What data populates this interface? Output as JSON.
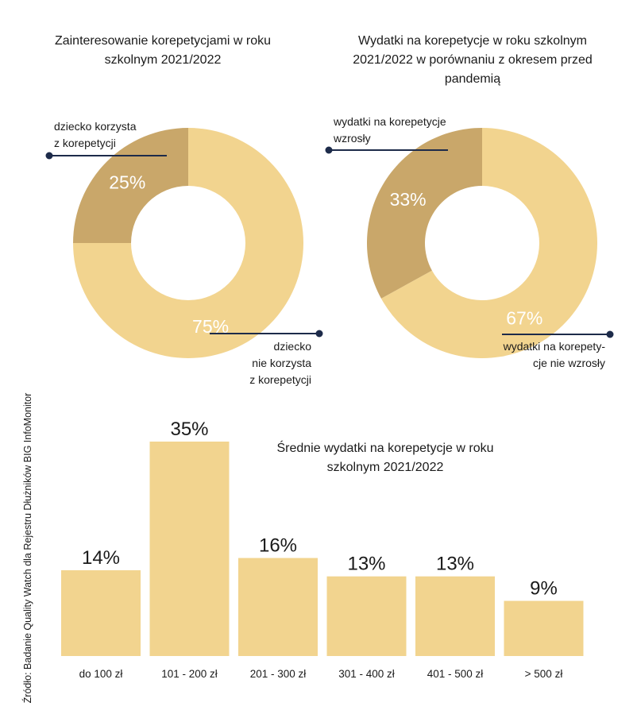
{
  "colors": {
    "light": "#f2d48f",
    "dark": "#c9a76a",
    "line": "#1d2b4a",
    "white": "#ffffff"
  },
  "source": "Źródło: Badanie Quality Watch dla Rejestru Dłużników BIG InfoMonitor",
  "chart_data": [
    {
      "type": "pie",
      "title": "Zainteresowanie korepetycjami w roku szkolnym 2021/2022",
      "slices": [
        {
          "label": "dziecko korzysta z korepetycji",
          "value": 25,
          "value_label": "25%",
          "color": "#c9a76a"
        },
        {
          "label": "dziecko nie korzysta z korepetycji",
          "value": 75,
          "value_label": "75%",
          "color": "#f2d48f"
        }
      ]
    },
    {
      "type": "pie",
      "title": "Wydatki na korepetycje w roku szkolnym 2021/2022 w porównaniu z okresem przed pandemią",
      "slices": [
        {
          "label": "wydatki na korepetycje wzrosły",
          "value": 33,
          "value_label": "33%",
          "color": "#c9a76a"
        },
        {
          "label": "wydatki na korepetycje nie wzrosły",
          "value": 67,
          "value_label": "67%",
          "color": "#f2d48f"
        }
      ]
    },
    {
      "type": "bar",
      "title": "Średnie wydatki na korepetycje w roku szkolnym 2021/2022",
      "categories": [
        "do 100 zł",
        "101 - 200 zł",
        "201 - 300 zł",
        "301 - 400 zł",
        "401 - 500 zł",
        "> 500 zł"
      ],
      "values": [
        14,
        35,
        16,
        13,
        13,
        9
      ],
      "value_labels": [
        "14%",
        "35%",
        "16%",
        "13%",
        "13%",
        "9%"
      ],
      "color": "#f2d48f"
    }
  ],
  "texts": {
    "d1_title_1": "Zainteresowanie korepetycjami w roku",
    "d1_title_2": "szkolnym 2021/2022",
    "d1_dark_1": "dziecko korzysta",
    "d1_dark_2": "z korepetycji",
    "d1_light_1": "dziecko",
    "d1_light_2": "nie korzysta",
    "d1_light_3": "z korepetycji",
    "d2_title_1": "Wydatki na korepetycje w roku szkolnym",
    "d2_title_2": "2021/2022 w porównaniu z okresem przed",
    "d2_title_3": "pandemią",
    "d2_dark_1": "wydatki na korepetycje",
    "d2_dark_2": "wzrosły",
    "d2_light_1": "wydatki na korepety-",
    "d2_light_2": "cje nie wzrosły",
    "bar_title_1": "Średnie wydatki na korepetycje w roku",
    "bar_title_2": "szkolnym 2021/2022"
  }
}
